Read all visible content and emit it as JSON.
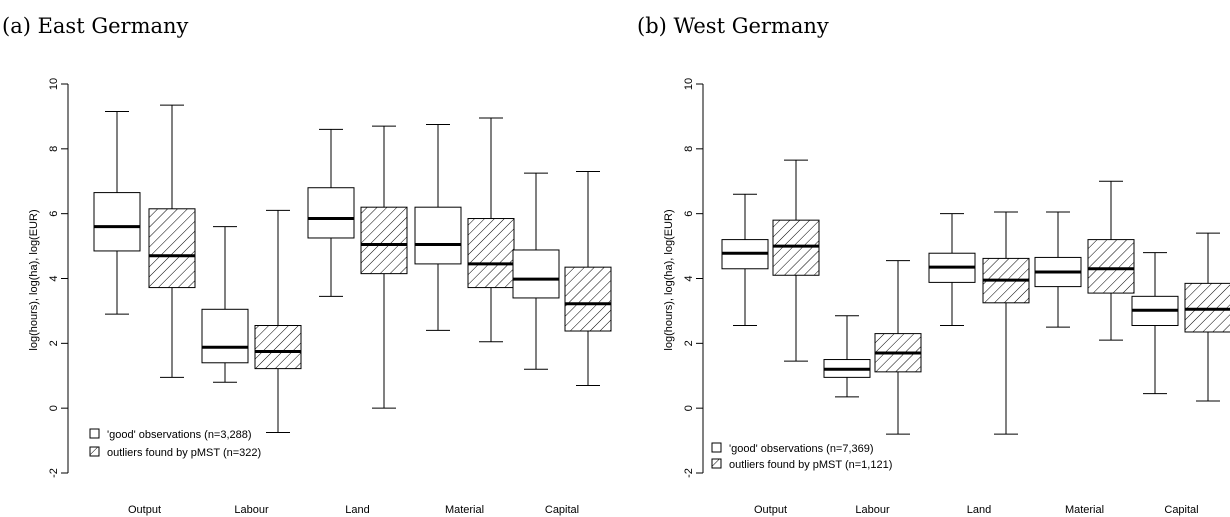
{
  "chart_data": [
    {
      "type": "boxplot",
      "title": "(a) East Germany",
      "ylabel": "log(hours), log(ha), log(EUR)",
      "ylim": [
        -2,
        10
      ],
      "yticks": [
        -2,
        0,
        2,
        4,
        6,
        8,
        10
      ],
      "categories": [
        "Output",
        "Labour",
        "Land",
        "Material",
        "Capital"
      ],
      "legend": {
        "position": "bottom-left",
        "entries": [
          "'good' observations (n=3,288)",
          "outliers found by pMST (n=322)"
        ]
      },
      "series": [
        {
          "style": "plain",
          "boxes": [
            {
              "min": 2.9,
              "q1": 4.85,
              "median": 5.6,
              "q3": 6.65,
              "max": 9.15
            },
            {
              "min": 0.8,
              "q1": 1.4,
              "median": 1.88,
              "q3": 3.05,
              "max": 5.6
            },
            {
              "min": 3.45,
              "q1": 5.25,
              "median": 5.85,
              "q3": 6.8,
              "max": 8.6
            },
            {
              "min": 2.4,
              "q1": 4.45,
              "median": 5.05,
              "q3": 6.2,
              "max": 8.75
            },
            {
              "min": 1.2,
              "q1": 3.4,
              "median": 3.98,
              "q3": 4.88,
              "max": 7.25
            }
          ]
        },
        {
          "style": "hatched",
          "boxes": [
            {
              "min": 0.95,
              "q1": 3.72,
              "median": 4.7,
              "q3": 6.15,
              "max": 9.35
            },
            {
              "min": -0.75,
              "q1": 1.22,
              "median": 1.75,
              "q3": 2.55,
              "max": 6.1
            },
            {
              "min": 0.0,
              "q1": 4.15,
              "median": 5.05,
              "q3": 6.2,
              "max": 8.7
            },
            {
              "min": 2.05,
              "q1": 3.72,
              "median": 4.45,
              "q3": 5.85,
              "max": 8.95
            },
            {
              "min": 0.7,
              "q1": 2.38,
              "median": 3.22,
              "q3": 4.35,
              "max": 7.3
            }
          ]
        }
      ]
    },
    {
      "type": "boxplot",
      "title": "(b) West Germany",
      "ylabel": "log(hours), log(ha), log(EUR)",
      "ylim": [
        -2,
        10
      ],
      "yticks": [
        -2,
        0,
        2,
        4,
        6,
        8,
        10
      ],
      "categories": [
        "Output",
        "Labour",
        "Land",
        "Material",
        "Capital"
      ],
      "legend": {
        "position": "bottom-left",
        "entries": [
          "'good' observations (n=7,369)",
          "outliers found by pMST (n=1,121)"
        ]
      },
      "series": [
        {
          "style": "plain",
          "boxes": [
            {
              "min": 2.55,
              "q1": 4.3,
              "median": 4.78,
              "q3": 5.2,
              "max": 6.6
            },
            {
              "min": 0.35,
              "q1": 0.95,
              "median": 1.2,
              "q3": 1.5,
              "max": 2.85
            },
            {
              "min": 2.55,
              "q1": 3.88,
              "median": 4.35,
              "q3": 4.78,
              "max": 6.0
            },
            {
              "min": 2.5,
              "q1": 3.75,
              "median": 4.2,
              "q3": 4.65,
              "max": 6.05
            },
            {
              "min": 0.45,
              "q1": 2.55,
              "median": 3.02,
              "q3": 3.45,
              "max": 4.8
            }
          ]
        },
        {
          "style": "hatched",
          "boxes": [
            {
              "min": 1.45,
              "q1": 4.1,
              "median": 5.0,
              "q3": 5.8,
              "max": 7.65
            },
            {
              "min": -0.8,
              "q1": 1.12,
              "median": 1.7,
              "q3": 2.3,
              "max": 4.55
            },
            {
              "min": -0.8,
              "q1": 3.25,
              "median": 3.95,
              "q3": 4.62,
              "max": 6.05
            },
            {
              "min": 2.1,
              "q1": 3.55,
              "median": 4.3,
              "q3": 5.2,
              "max": 7.0
            },
            {
              "min": 0.22,
              "q1": 2.35,
              "median": 3.05,
              "q3": 3.85,
              "max": 5.4
            }
          ]
        }
      ]
    }
  ]
}
